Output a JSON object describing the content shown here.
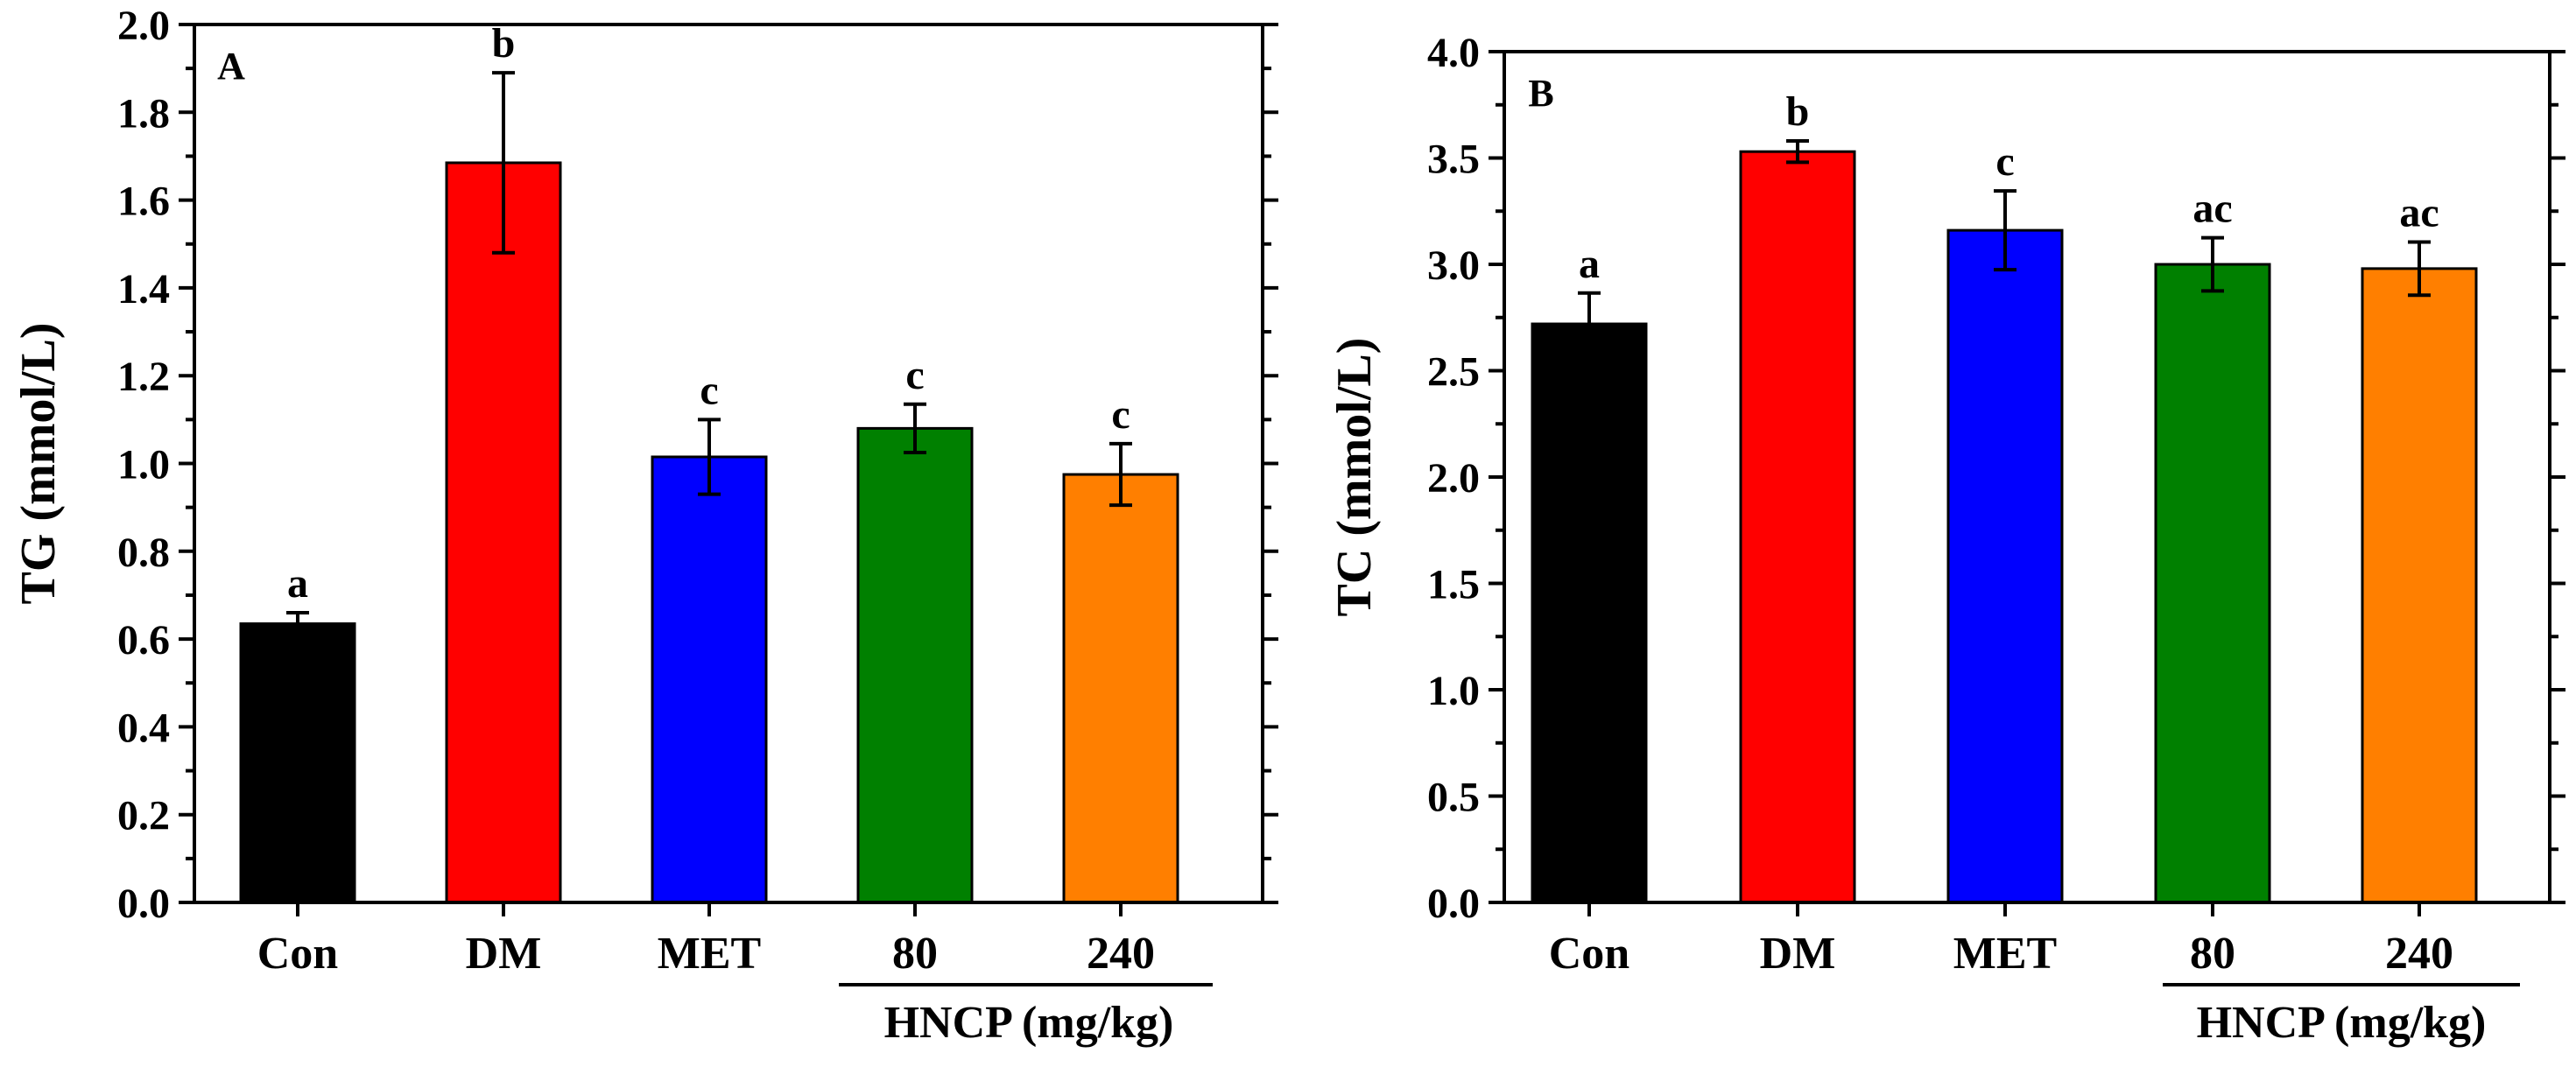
{
  "chart_data": [
    {
      "panel": "A",
      "type": "bar",
      "ylabel": "TG (mmol/L)",
      "ylim": [
        0,
        2.0
      ],
      "ytick_step": 0.2,
      "ytick_labels": [
        "0.0",
        "0.2",
        "0.4",
        "0.6",
        "0.8",
        "1.0",
        "1.2",
        "1.4",
        "1.6",
        "1.8",
        "2.0"
      ],
      "categories": [
        "Con",
        "DM",
        "MET",
        "80",
        "240"
      ],
      "group_label": "HNCP (mg/kg)",
      "values": [
        0.635,
        1.685,
        1.015,
        1.08,
        0.975
      ],
      "errors": [
        0.025,
        0.205,
        0.085,
        0.055,
        0.07
      ],
      "letters": [
        "a",
        "b",
        "c",
        "c",
        "c"
      ],
      "colors": [
        "#000000",
        "#ff0000",
        "#0000ff",
        "#008000",
        "#ff7f00"
      ]
    },
    {
      "panel": "B",
      "type": "bar",
      "ylabel": "TC (mmol/L)",
      "ylim": [
        0,
        4.0
      ],
      "ytick_step": 0.5,
      "ytick_labels": [
        "0.0",
        "0.5",
        "1.0",
        "1.5",
        "2.0",
        "2.5",
        "3.0",
        "3.5",
        "4.0"
      ],
      "categories": [
        "Con",
        "DM",
        "MET",
        "80",
        "240"
      ],
      "group_label": "HNCP (mg/kg)",
      "values": [
        2.72,
        3.53,
        3.16,
        3.0,
        2.98
      ],
      "errors": [
        0.145,
        0.05,
        0.185,
        0.125,
        0.125
      ],
      "letters": [
        "a",
        "b",
        "c",
        "ac",
        "ac"
      ],
      "colors": [
        "#000000",
        "#ff0000",
        "#0000ff",
        "#008000",
        "#ff7f00"
      ]
    }
  ]
}
